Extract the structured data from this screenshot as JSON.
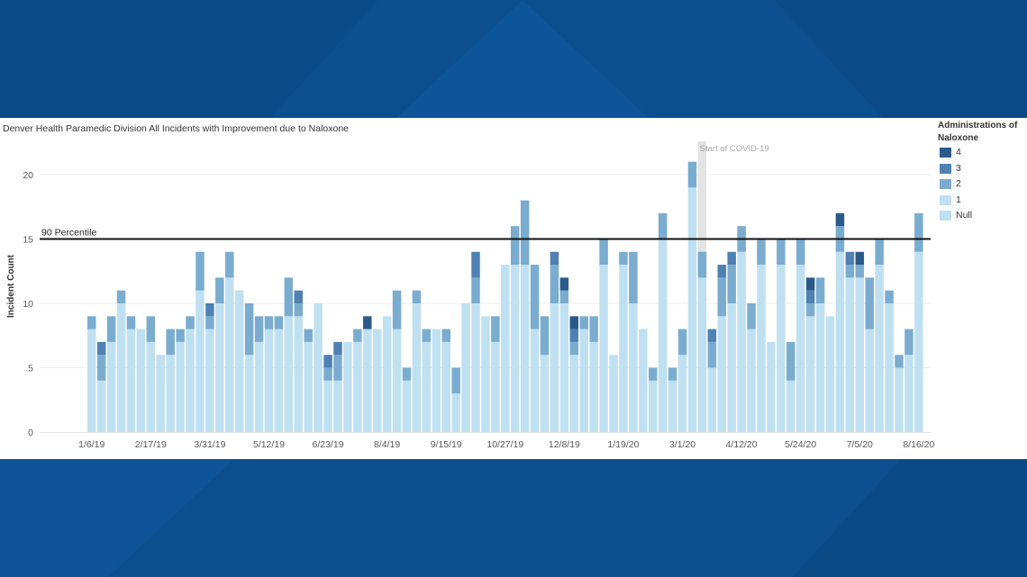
{
  "colors": {
    "background": "#0b4f8f",
    "panel": "#ffffff",
    "null": "#bfe0f0",
    "one": "#bfe0f0",
    "two": "#7aaccf",
    "three": "#4f81b3",
    "four": "#2a5a8a",
    "covid_band": "#e3e3e3",
    "percentile_line": "#111111"
  },
  "legend": {
    "title": "Administrations of Naloxone",
    "items": [
      {
        "label": "4",
        "color": "#2a5a8a"
      },
      {
        "label": "3",
        "color": "#4f81b3"
      },
      {
        "label": "2",
        "color": "#7aaccf"
      },
      {
        "label": "1",
        "color": "#bfe0f0"
      },
      {
        "label": "Null",
        "color": "#bfe0f0"
      }
    ]
  },
  "chart_data": {
    "type": "bar",
    "stacked": true,
    "title": "Denver Health Paramedic Division All Incidents with Improvement due to Naloxone",
    "ylabel": "Incident Count",
    "xlabel": "",
    "ylim": [
      0,
      22
    ],
    "yticks": [
      0,
      5,
      10,
      15,
      20
    ],
    "x_tick_labels": [
      "1/6/19",
      "2/17/19",
      "3/31/19",
      "5/12/19",
      "6/23/19",
      "8/4/19",
      "9/15/19",
      "10/27/19",
      "12/8/19",
      "1/19/20",
      "3/1/20",
      "4/12/20",
      "5/24/20",
      "7/5/20",
      "8/16/20"
    ],
    "grid": true,
    "reference_line": {
      "label": "90 Percentile",
      "value": 15
    },
    "annotation": {
      "label": "Start of COVID-19",
      "week_index": 62
    },
    "series": [
      {
        "name": "1",
        "values": [
          8,
          4,
          7,
          10,
          8,
          8,
          7,
          6,
          6,
          7,
          8,
          11,
          8,
          10,
          12,
          11,
          6,
          7,
          8,
          8,
          9,
          9,
          7,
          10,
          4,
          4,
          7,
          7,
          8,
          8,
          9,
          8,
          4,
          10,
          7,
          8,
          7,
          3,
          10,
          10,
          9,
          7,
          13,
          13,
          13,
          8,
          6,
          10,
          10,
          6,
          8,
          7,
          13,
          6,
          13,
          10,
          8,
          4,
          15,
          4,
          6,
          19,
          12,
          5,
          9,
          10,
          14,
          8,
          13,
          7,
          13,
          4,
          13,
          9,
          10,
          9,
          14,
          12,
          12,
          8,
          13,
          10,
          5,
          6,
          14
        ]
      },
      {
        "name": "2",
        "values": [
          1,
          2,
          2,
          1,
          1,
          0,
          2,
          0,
          2,
          1,
          1,
          3,
          1,
          2,
          2,
          0,
          4,
          2,
          1,
          1,
          3,
          1,
          1,
          0,
          1,
          2,
          0,
          1,
          0,
          0,
          0,
          3,
          1,
          1,
          1,
          0,
          1,
          2,
          0,
          2,
          0,
          2,
          0,
          3,
          5,
          5,
          3,
          3,
          1,
          1,
          1,
          2,
          2,
          0,
          1,
          4,
          0,
          1,
          2,
          1,
          2,
          2,
          2,
          2,
          3,
          3,
          2,
          2,
          2,
          0,
          2,
          3,
          2,
          1,
          2,
          0,
          2,
          1,
          1,
          4,
          2,
          1,
          1,
          2,
          3
        ]
      },
      {
        "name": "3",
        "values": [
          0,
          1,
          0,
          0,
          0,
          0,
          0,
          0,
          0,
          0,
          0,
          0,
          1,
          0,
          0,
          0,
          0,
          0,
          0,
          0,
          0,
          1,
          0,
          0,
          1,
          1,
          0,
          0,
          0,
          0,
          0,
          0,
          0,
          0,
          0,
          0,
          0,
          0,
          0,
          2,
          0,
          0,
          0,
          0,
          0,
          0,
          0,
          1,
          0,
          1,
          0,
          0,
          0,
          0,
          0,
          0,
          0,
          0,
          0,
          0,
          0,
          0,
          0,
          1,
          1,
          1,
          0,
          0,
          0,
          0,
          0,
          0,
          0,
          1,
          0,
          0,
          0,
          1,
          0,
          0,
          0,
          0,
          0,
          0,
          0
        ]
      },
      {
        "name": "4",
        "values": [
          0,
          0,
          0,
          0,
          0,
          0,
          0,
          0,
          0,
          0,
          0,
          0,
          0,
          0,
          0,
          0,
          0,
          0,
          0,
          0,
          0,
          0,
          0,
          0,
          0,
          0,
          0,
          0,
          1,
          0,
          0,
          0,
          0,
          0,
          0,
          0,
          0,
          0,
          0,
          0,
          0,
          0,
          0,
          0,
          0,
          0,
          0,
          0,
          1,
          1,
          0,
          0,
          0,
          0,
          0,
          0,
          0,
          0,
          0,
          0,
          0,
          0,
          0,
          0,
          0,
          0,
          0,
          0,
          0,
          0,
          0,
          0,
          0,
          1,
          0,
          0,
          1,
          0,
          1,
          0,
          0,
          0,
          0,
          0,
          0
        ]
      }
    ]
  }
}
